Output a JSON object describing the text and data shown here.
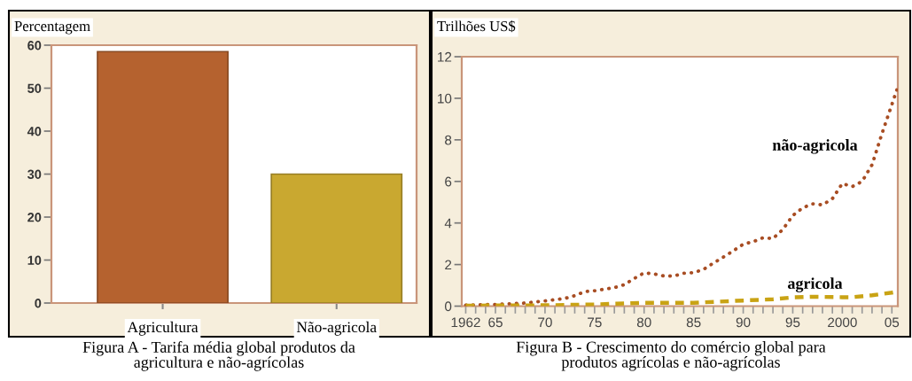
{
  "chart_data": [
    {
      "type": "bar",
      "title": "Figura A - Tarifa média global produtos da\nagricultura e não-agrícolas",
      "ylabel": "Percentagem",
      "categories": [
        "Agricultura",
        "Não-agricola"
      ],
      "values": [
        58.5,
        30
      ],
      "colors": [
        "#b5622f",
        "#c9a830"
      ],
      "ylim": [
        0,
        60
      ],
      "yticks": [
        0,
        10,
        20,
        30,
        40,
        50,
        60
      ]
    },
    {
      "type": "line",
      "title": "Figura B - Crescimento do comércio global para\nprodutos agrícolas e não-agrícolas",
      "ylabel": "Trilhões US$",
      "series": [
        {
          "name": "não-agricola",
          "color": "#a84d23",
          "line_style": "dotted",
          "x": [
            1962,
            1965,
            1968,
            1970,
            1972,
            1973,
            1974,
            1975,
            1977,
            1978,
            1979,
            1980,
            1981,
            1982,
            1983,
            1984,
            1985,
            1986,
            1987,
            1988,
            1989,
            1990,
            1991,
            1992,
            1993,
            1994,
            1995,
            1996,
            1997,
            1998,
            1999,
            2000,
            2001,
            2002,
            2003,
            2004,
            2005,
            2005.5
          ],
          "values": [
            0.05,
            0.08,
            0.15,
            0.25,
            0.37,
            0.5,
            0.7,
            0.74,
            0.89,
            1.03,
            1.33,
            1.6,
            1.55,
            1.45,
            1.45,
            1.58,
            1.61,
            1.77,
            2.07,
            2.36,
            2.66,
            2.98,
            3.1,
            3.29,
            3.25,
            3.69,
            4.36,
            4.73,
            4.92,
            4.87,
            5.17,
            5.9,
            5.75,
            6.0,
            6.8,
            8.3,
            9.7,
            10.4
          ]
        },
        {
          "name": "agricola",
          "color": "#c9a314",
          "line_style": "dashed",
          "x": [
            1962,
            1965,
            1970,
            1975,
            1980,
            1985,
            1990,
            1993,
            1995,
            1997,
            2000,
            2001,
            2003,
            2005,
            2005.5
          ],
          "values": [
            0.02,
            0.03,
            0.04,
            0.08,
            0.16,
            0.16,
            0.27,
            0.33,
            0.42,
            0.45,
            0.43,
            0.43,
            0.52,
            0.65,
            0.7
          ]
        }
      ],
      "xlim": [
        1961.6,
        2005.6
      ],
      "xticks": [
        1962,
        {
          "value": 1963,
          "label": null
        },
        {
          "value": 1964,
          "label": null
        },
        {
          "value": 1965,
          "label": "65"
        },
        {
          "value": 1966,
          "label": null
        },
        {
          "value": 1967,
          "label": null
        },
        {
          "value": 1968,
          "label": null
        },
        {
          "value": 1969,
          "label": null
        },
        {
          "value": 1970,
          "label": "70"
        },
        {
          "value": 1971,
          "label": null
        },
        {
          "value": 1972,
          "label": null
        },
        {
          "value": 1973,
          "label": null
        },
        {
          "value": 1974,
          "label": null
        },
        {
          "value": 1975,
          "label": "75"
        },
        {
          "value": 1976,
          "label": null
        },
        {
          "value": 1977,
          "label": null
        },
        {
          "value": 1978,
          "label": null
        },
        {
          "value": 1979,
          "label": null
        },
        {
          "value": 1980,
          "label": "80"
        },
        {
          "value": 1981,
          "label": null
        },
        {
          "value": 1982,
          "label": null
        },
        {
          "value": 1983,
          "label": null
        },
        {
          "value": 1984,
          "label": null
        },
        {
          "value": 1985,
          "label": "85"
        },
        {
          "value": 1986,
          "label": null
        },
        {
          "value": 1987,
          "label": null
        },
        {
          "value": 1988,
          "label": null
        },
        {
          "value": 1989,
          "label": null
        },
        {
          "value": 1990,
          "label": "90"
        },
        {
          "value": 1991,
          "label": null
        },
        {
          "value": 1992,
          "label": null
        },
        {
          "value": 1993,
          "label": null
        },
        {
          "value": 1994,
          "label": null
        },
        {
          "value": 1995,
          "label": "95"
        },
        {
          "value": 1996,
          "label": null
        },
        {
          "value": 1997,
          "label": null
        },
        {
          "value": 1998,
          "label": null
        },
        {
          "value": 1999,
          "label": null
        },
        2000,
        {
          "value": 2001,
          "label": null
        },
        {
          "value": 2002,
          "label": null
        },
        {
          "value": 2003,
          "label": null
        },
        {
          "value": 2004,
          "label": null
        },
        {
          "value": 2005,
          "label": "05"
        }
      ],
      "ylim": [
        0,
        12
      ],
      "yticks": [
        0,
        2,
        4,
        6,
        8,
        10,
        12
      ]
    }
  ]
}
